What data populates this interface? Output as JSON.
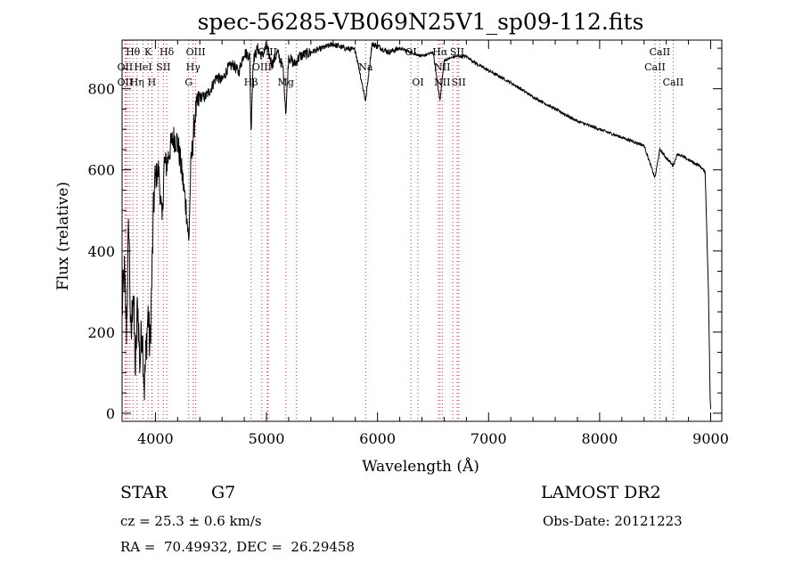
{
  "chart_data": {
    "type": "line",
    "title": "spec-56285-VB069N25V1_sp09-112.fits",
    "xlabel": "Wavelength (Å)",
    "ylabel": "Flux (relative)",
    "xlim": [
      3700,
      9100
    ],
    "ylim": [
      -20,
      920
    ],
    "x_ticks": [
      4000,
      5000,
      6000,
      7000,
      8000,
      9000
    ],
    "y_ticks": [
      0,
      200,
      400,
      600,
      800
    ],
    "grid": false,
    "series": [
      {
        "x": [
          3700,
          3720,
          3740,
          3760,
          3780,
          3800,
          3820,
          3840,
          3860,
          3880,
          3900,
          3920,
          3935,
          3950,
          3968,
          3985,
          4000,
          4030,
          4060,
          4080,
          4100,
          4130,
          4160,
          4200,
          4240,
          4280,
          4300,
          4320,
          4340,
          4360,
          4400,
          4450,
          4500,
          4550,
          4600,
          4650,
          4700,
          4750,
          4800,
          4850,
          4861,
          4880,
          4920,
          4960,
          5000,
          5050,
          5100,
          5150,
          5175,
          5200,
          5250,
          5300,
          5400,
          5500,
          5600,
          5700,
          5800,
          5893,
          5950,
          6000,
          6100,
          6200,
          6300,
          6400,
          6500,
          6563,
          6600,
          6700,
          6800,
          6900,
          7000,
          7200,
          7400,
          7600,
          7800,
          8000,
          8200,
          8400,
          8498,
          8542,
          8600,
          8662,
          8700,
          8800,
          8900,
          8950,
          8980,
          8995,
          9000
        ],
        "y": [
          250,
          350,
          200,
          480,
          160,
          320,
          100,
          280,
          120,
          220,
          60,
          180,
          250,
          150,
          330,
          520,
          580,
          600,
          470,
          620,
          610,
          650,
          680,
          670,
          590,
          500,
          420,
          610,
          680,
          740,
          780,
          780,
          800,
          830,
          820,
          850,
          860,
          840,
          890,
          880,
          690,
          870,
          900,
          880,
          905,
          860,
          890,
          850,
          740,
          880,
          860,
          880,
          890,
          900,
          910,
          900,
          895,
          770,
          910,
          905,
          890,
          900,
          890,
          880,
          890,
          770,
          870,
          880,
          880,
          860,
          845,
          815,
          780,
          750,
          720,
          700,
          680,
          660,
          580,
          650,
          630,
          610,
          640,
          625,
          610,
          595,
          300,
          40,
          10
        ],
        "interpolated": true
      }
    ],
    "lines": {
      "x": [
        3727,
        3735,
        3750,
        3771,
        3798,
        3835,
        3889,
        3934,
        3968,
        3970,
        4026,
        4072,
        4102,
        4300,
        4340,
        4363,
        4861,
        4959,
        5007,
        5015,
        5175,
        5270,
        5893,
        6300,
        6364,
        6548,
        6563,
        6583,
        6678,
        6717,
        6731,
        8498,
        8542,
        8662
      ],
      "labels": [
        {
          "text": "Hθ",
          "x": 3798,
          "row": 1
        },
        {
          "text": "K",
          "x": 3934,
          "row": 1
        },
        {
          "text": "Hδ",
          "x": 4102,
          "row": 1
        },
        {
          "text": "OII",
          "x": 3727,
          "row": 2
        },
        {
          "text": "HeI",
          "x": 3889,
          "row": 2
        },
        {
          "text": "SII",
          "x": 4072,
          "row": 2
        },
        {
          "text": "OII",
          "x": 3727,
          "row": 3
        },
        {
          "text": "Hη",
          "x": 3835,
          "row": 3
        },
        {
          "text": "H",
          "x": 3968,
          "row": 3
        },
        {
          "text": "OIII",
          "x": 4363,
          "row": 1
        },
        {
          "text": "Hγ",
          "x": 4340,
          "row": 2
        },
        {
          "text": "G",
          "x": 4300,
          "row": 3
        },
        {
          "text": "OIII",
          "x": 5007,
          "row": 1
        },
        {
          "text": "OIII",
          "x": 4959,
          "row": 2
        },
        {
          "text": "Hβ",
          "x": 4861,
          "row": 3
        },
        {
          "text": "Mg",
          "x": 5175,
          "row": 3
        },
        {
          "text": "Na",
          "x": 5893,
          "row": 2
        },
        {
          "text": "OI",
          "x": 6300,
          "row": 1
        },
        {
          "text": "OI",
          "x": 6364,
          "row": 3
        },
        {
          "text": "Hα",
          "x": 6563,
          "row": 1
        },
        {
          "text": "SII",
          "x": 6717,
          "row": 1
        },
        {
          "text": "NII",
          "x": 6583,
          "row": 2
        },
        {
          "text": "NII",
          "x": 6583,
          "row": 3
        },
        {
          "text": "SII",
          "x": 6731,
          "row": 3
        },
        {
          "text": "CaII",
          "x": 8542,
          "row": 1
        },
        {
          "text": "CaII",
          "x": 8498,
          "row": 2
        },
        {
          "text": "CaII",
          "x": 8662,
          "row": 3
        }
      ]
    }
  },
  "info": {
    "object_class": "STAR",
    "subclass": "G7",
    "survey": "LAMOST DR2",
    "cz": "cz = 25.3 ± 0.6 km/s",
    "obs_date": "Obs-Date: 20121223",
    "coords": "RA =  70.49932, DEC =  26.29458"
  }
}
